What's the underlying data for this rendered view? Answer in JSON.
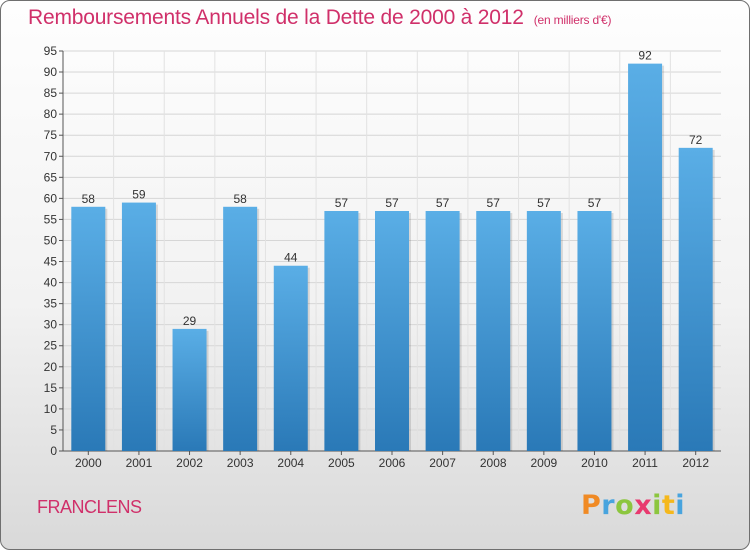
{
  "title": "Remboursements Annuels de la Dette de 2000 à 2012",
  "unit_note": "(en milliers d'€)",
  "town": "FRANCLENS",
  "logo": "Proxiti",
  "colors": {
    "accent": "#d0306a",
    "bar_top": "#5aaee6",
    "bar_bottom": "#2a79b7"
  },
  "chart_data": {
    "type": "bar",
    "title": "Remboursements Annuels de la Dette de 2000 à 2012",
    "subtitle": "(en milliers d'€)",
    "xlabel": "",
    "ylabel": "",
    "categories": [
      "2000",
      "2001",
      "2002",
      "2003",
      "2004",
      "2005",
      "2006",
      "2007",
      "2008",
      "2009",
      "2010",
      "2011",
      "2012"
    ],
    "values": [
      58,
      59,
      29,
      58,
      44,
      57,
      57,
      57,
      57,
      57,
      57,
      92,
      72
    ],
    "ylim": [
      0,
      95
    ],
    "ytick_step": 5,
    "grid": true,
    "data_labels": true,
    "legend": "none"
  }
}
